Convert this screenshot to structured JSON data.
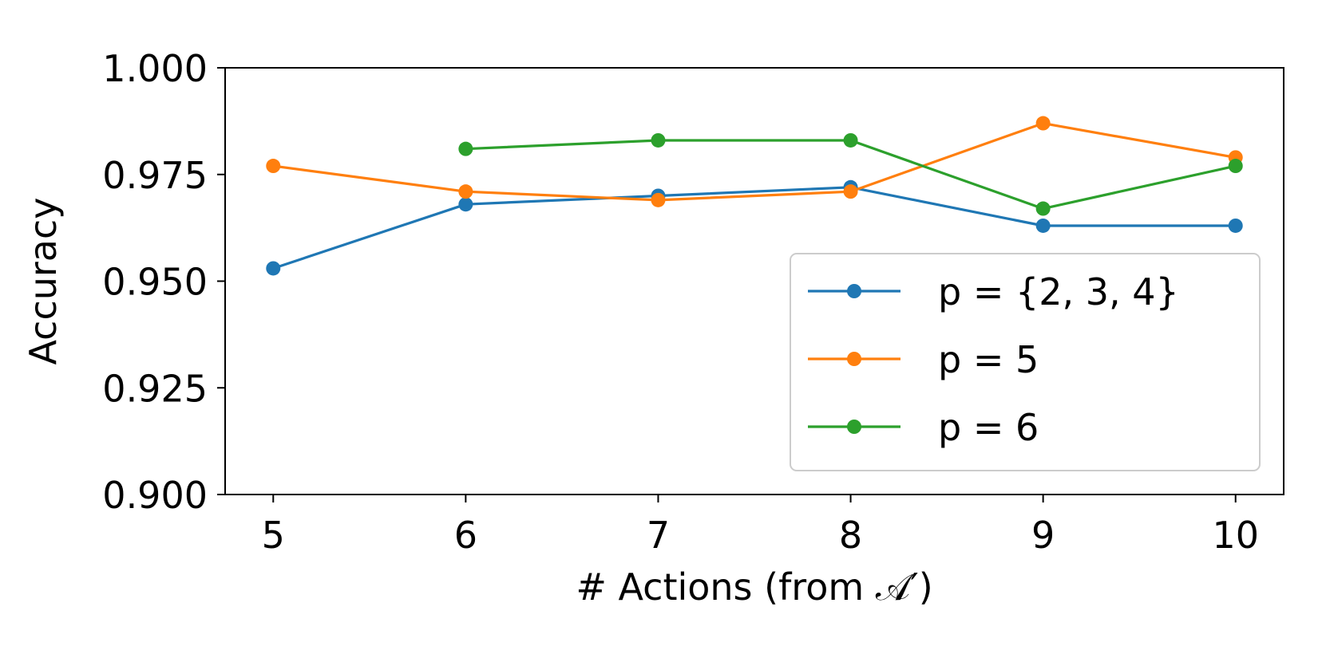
{
  "chart_data": {
    "type": "line",
    "title": "",
    "xlabel": "# Actions (from 𝒜′)",
    "ylabel": "Accuracy",
    "xlim": [
      4.75,
      10.25
    ],
    "ylim": [
      0.9,
      1.0
    ],
    "xticks": [
      5,
      6,
      7,
      8,
      9,
      10
    ],
    "xtick_labels": [
      "5",
      "6",
      "7",
      "8",
      "9",
      "10"
    ],
    "yticks": [
      0.9,
      0.925,
      0.95,
      0.975,
      1.0
    ],
    "ytick_labels": [
      "0.900",
      "0.925",
      "0.950",
      "0.975",
      "1.000"
    ],
    "grid": false,
    "legend_position": "lower-right",
    "series": [
      {
        "name": "p = {2, 3, 4}",
        "color": "#1f77b4",
        "x": [
          5,
          6,
          7,
          8,
          9,
          10
        ],
        "y": [
          0.953,
          0.968,
          0.97,
          0.972,
          0.963,
          0.963
        ]
      },
      {
        "name": "p = 5",
        "color": "#ff7f0e",
        "x": [
          5,
          6,
          7,
          8,
          9,
          10
        ],
        "y": [
          0.977,
          0.971,
          0.969,
          0.971,
          0.987,
          0.979
        ]
      },
      {
        "name": "p = 6",
        "color": "#2ca02c",
        "x": [
          6,
          7,
          8,
          9,
          10
        ],
        "y": [
          0.981,
          0.983,
          0.983,
          0.967,
          0.977
        ]
      }
    ]
  }
}
